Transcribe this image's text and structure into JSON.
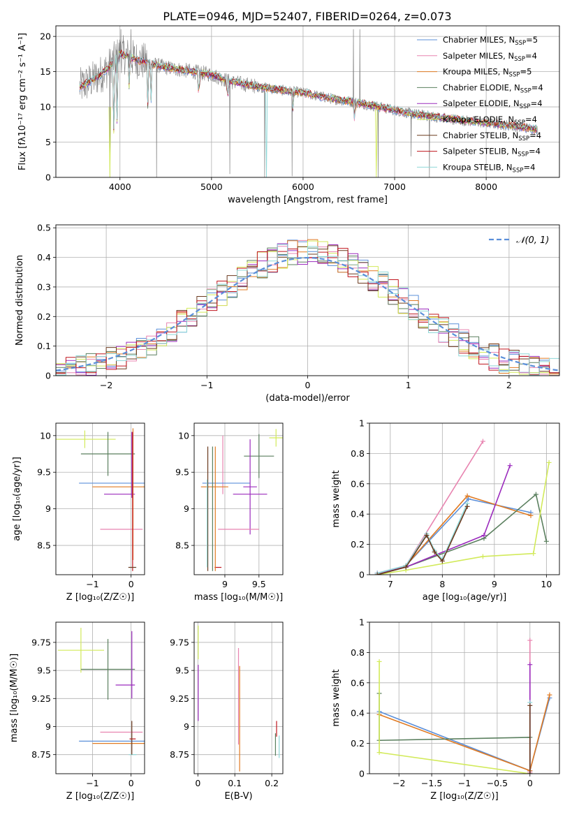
{
  "title": "PLATE=0946, MJD=52407, FIBERID=0264, z=0.073",
  "colors": {
    "chabrier_miles": "#5b8fd9",
    "salpeter_miles": "#e884b0",
    "kroupa_miles": "#e07a22",
    "chabrier_elodie": "#5a7f5e",
    "salpeter_elodie": "#9b2bbd",
    "kroupa_elodie": "#d2ea5a",
    "chabrier_stelib": "#6b3a1f",
    "salpeter_stelib": "#c0161e",
    "kroupa_stelib": "#8fd8d8",
    "data": "#7f7f7f",
    "normal": "#5b8fd9"
  },
  "chart_data": [
    {
      "type": "line",
      "panel": "spectrum",
      "xlabel": "wavelength [Angstrom, rest frame]",
      "ylabel": "Flux [fλ10⁻¹⁷ erg cm⁻² s⁻¹ A⁻¹]",
      "xlim": [
        3300,
        8800
      ],
      "ylim": [
        0,
        21.5
      ],
      "xticks": [
        4000,
        5000,
        6000,
        7000,
        8000
      ],
      "yticks": [
        0,
        5,
        10,
        15,
        20
      ],
      "legend_position": "top-right",
      "legend": [
        {
          "label": "Chabrier MILES, N_SSP=5",
          "key": "chabrier_miles"
        },
        {
          "label": "Salpeter MILES, N_SSP=4",
          "key": "salpeter_miles"
        },
        {
          "label": "Kroupa MILES, N_SSP=5",
          "key": "kroupa_miles"
        },
        {
          "label": "Chabrier ELODIE, N_SSP=4",
          "key": "chabrier_elodie"
        },
        {
          "label": "Salpeter ELODIE, N_SSP=4",
          "key": "salpeter_elodie"
        },
        {
          "label": "Kroupa ELODIE, N_SSP=4",
          "key": "kroupa_elodie"
        },
        {
          "label": "Chabrier STELIB, N_SSP=4",
          "key": "chabrier_stelib"
        },
        {
          "label": "Salpeter STELIB, N_SSP=4",
          "key": "salpeter_stelib"
        },
        {
          "label": "Kroupa STELIB, N_SSP=4",
          "key": "kroupa_stelib"
        }
      ],
      "continuum": [
        [
          3560,
          12.8
        ],
        [
          3700,
          13.8
        ],
        [
          3850,
          15.2
        ],
        [
          4000,
          17.6
        ],
        [
          4200,
          16.6
        ],
        [
          4500,
          15.6
        ],
        [
          4800,
          15.0
        ],
        [
          5000,
          14.6
        ],
        [
          5200,
          13.6
        ],
        [
          5500,
          12.9
        ],
        [
          5800,
          12.3
        ],
        [
          6000,
          12.0
        ],
        [
          6300,
          11.2
        ],
        [
          6600,
          10.6
        ],
        [
          6900,
          9.8
        ],
        [
          7200,
          9.0
        ],
        [
          7500,
          8.5
        ],
        [
          7800,
          8.0
        ],
        [
          8100,
          7.6
        ],
        [
          8400,
          7.1
        ],
        [
          8560,
          6.8
        ]
      ],
      "data_series": "grey observed spectrum"
    },
    {
      "type": "bar",
      "panel": "residuals",
      "xlabel": "(data-model)/error",
      "ylabel": "Normed distribution",
      "xlim": [
        -2.5,
        2.5
      ],
      "ylim": [
        0,
        0.51
      ],
      "xticks": [
        -2,
        -1,
        0,
        1,
        2
      ],
      "yticks": [
        0.0,
        0.1,
        0.2,
        0.3,
        0.4,
        0.5
      ],
      "legend_position": "top-right",
      "normal_label": "𝒩(0, 1)"
    },
    {
      "type": "scatter",
      "panel": "age-vs-Z",
      "xlabel": "Z [log₁₀(Z/Z☉)]",
      "ylabel": "age  [log₁₀(age/yr)]",
      "xlim": [
        -1.95,
        0.35
      ],
      "ylim": [
        8.1,
        10.17
      ],
      "xticks": [
        -1,
        0
      ],
      "yticks": [
        8.5,
        9.0,
        9.5,
        10.0
      ],
      "points": [
        {
          "key": "kroupa_elodie",
          "x": -1.2,
          "xerr": 0.8,
          "y": 9.95,
          "yerr": 0.12
        },
        {
          "key": "chabrier_elodie",
          "x": -0.6,
          "xerr": 0.7,
          "y": 9.75,
          "yerr": 0.3
        },
        {
          "key": "chabrier_miles",
          "x": -0.45,
          "xerr": 0.9,
          "y": 9.35,
          "yerr": 0
        },
        {
          "key": "kroupa_miles",
          "x": -0.3,
          "xerr": 0.7,
          "y": 9.3,
          "yerr": 0
        },
        {
          "key": "salpeter_elodie",
          "x": -0.3,
          "xerr": 0.4,
          "y": 9.2,
          "yerr": 0
        },
        {
          "key": "salpeter_miles",
          "x": -0.25,
          "xerr": 0.55,
          "y": 8.72,
          "yerr": 0
        },
        {
          "key": "salpeter_elodie",
          "x": 0.02,
          "xerr": 0,
          "y": 9.6,
          "yerr": 0.45
        },
        {
          "key": "kroupa_miles",
          "x": 0.05,
          "xerr": 0,
          "y": 9.2,
          "yerr": 0.9
        },
        {
          "key": "salpeter_stelib",
          "x": 0.04,
          "xerr": 0,
          "y": 9.1,
          "yerr": 0.95
        },
        {
          "key": "kroupa_stelib",
          "x": 0.04,
          "xerr": 0.1,
          "y": 8.2,
          "yerr": 0
        },
        {
          "key": "chabrier_stelib",
          "x": 0.03,
          "xerr": 0.1,
          "y": 8.2,
          "yerr": 0
        }
      ]
    },
    {
      "type": "scatter",
      "panel": "age-vs-mass",
      "xlabel": "mass [log₁₀(M/M☉)]",
      "ylabel": "",
      "xlim": [
        8.55,
        9.85
      ],
      "ylim": [
        8.1,
        10.17
      ],
      "xticks": [
        9.0,
        9.5
      ],
      "yticks": [
        8.5,
        9.0,
        9.5,
        10.0
      ],
      "points": [
        {
          "key": "kroupa_elodie",
          "x": 9.75,
          "xerr": 0.1,
          "y": 9.97,
          "yerr": 0.12
        },
        {
          "key": "chabrier_elodie",
          "x": 9.5,
          "xerr": 0.22,
          "y": 9.72,
          "yerr": 0.3
        },
        {
          "key": "salpeter_miles",
          "x": 8.97,
          "xerr": 0,
          "y": 9.6,
          "yerr": 0.4
        },
        {
          "key": "chabrier_miles",
          "x": 9.02,
          "xerr": 0.35,
          "y": 9.35,
          "yerr": 0
        },
        {
          "key": "salpeter_elodie",
          "x": 9.37,
          "xerr": 0.1,
          "y": 9.3,
          "yerr": 0.65
        },
        {
          "key": "salpeter_elodie",
          "x": 9.37,
          "xerr": 0.25,
          "y": 9.2,
          "yerr": 0
        },
        {
          "key": "kroupa_miles",
          "x": 8.85,
          "xerr": 0.2,
          "y": 9.3,
          "yerr": 0
        },
        {
          "key": "salpeter_miles",
          "x": 9.2,
          "xerr": 0.3,
          "y": 8.72,
          "yerr": 0
        },
        {
          "key": "chabrier_stelib",
          "x": 8.75,
          "xerr": 0,
          "y": 9.0,
          "yerr": 0.85
        },
        {
          "key": "kroupa_stelib",
          "x": 8.74,
          "xerr": 0,
          "y": 8.8,
          "yerr": 0.6
        },
        {
          "key": "salpeter_stelib",
          "x": 8.9,
          "xerr": 0.05,
          "y": 8.2,
          "yerr": 0
        },
        {
          "key": "chabrier_elodie",
          "x": 8.82,
          "xerr": 0,
          "y": 9.0,
          "yerr": 0.85
        },
        {
          "key": "kroupa_miles",
          "x": 8.86,
          "xerr": 0,
          "y": 9.0,
          "yerr": 0.85
        }
      ]
    },
    {
      "type": "line",
      "panel": "mass-weight-vs-age",
      "xlabel": "age  [log₁₀(age/yr)]",
      "ylabel": "mass weight",
      "xlim": [
        6.6,
        10.25
      ],
      "ylim": [
        0,
        1.0
      ],
      "xticks": [
        7,
        8,
        9,
        10
      ],
      "yticks": [
        0.0,
        0.2,
        0.4,
        0.6,
        0.8,
        1.0
      ],
      "series": [
        {
          "key": "chabrier_miles",
          "points": [
            [
              6.75,
              0.0
            ],
            [
              7.3,
              0.06
            ],
            [
              8.5,
              0.5
            ],
            [
              9.7,
              0.41
            ]
          ]
        },
        {
          "key": "salpeter_miles",
          "points": [
            [
              6.75,
              0.01
            ],
            [
              7.3,
              0.06
            ],
            [
              8.78,
              0.88
            ]
          ]
        },
        {
          "key": "kroupa_miles",
          "points": [
            [
              6.75,
              0.0
            ],
            [
              7.3,
              0.06
            ],
            [
              8.48,
              0.52
            ],
            [
              9.7,
              0.39
            ]
          ]
        },
        {
          "key": "chabrier_elodie",
          "points": [
            [
              6.75,
              0.0
            ],
            [
              7.3,
              0.05
            ],
            [
              8.8,
              0.24
            ],
            [
              9.8,
              0.53
            ],
            [
              10.0,
              0.22
            ]
          ]
        },
        {
          "key": "salpeter_elodie",
          "points": [
            [
              6.75,
              0.01
            ],
            [
              7.3,
              0.05
            ],
            [
              8.8,
              0.26
            ],
            [
              9.3,
              0.72
            ]
          ]
        },
        {
          "key": "kroupa_elodie",
          "points": [
            [
              6.75,
              0.0
            ],
            [
              7.3,
              0.03
            ],
            [
              8.78,
              0.12
            ],
            [
              9.75,
              0.14
            ],
            [
              10.05,
              0.74
            ]
          ]
        },
        {
          "key": "kroupa_stelib",
          "points": [
            [
              6.75,
              0.01
            ],
            [
              7.3,
              0.06
            ],
            [
              7.7,
              0.27
            ],
            [
              7.85,
              0.16
            ],
            [
              8.0,
              0.1
            ],
            [
              8.48,
              0.47
            ]
          ]
        },
        {
          "key": "chabrier_stelib",
          "points": [
            [
              6.75,
              0.0
            ],
            [
              7.3,
              0.05
            ],
            [
              7.7,
              0.26
            ],
            [
              7.85,
              0.15
            ],
            [
              8.0,
              0.09
            ],
            [
              8.48,
              0.45
            ]
          ]
        }
      ]
    },
    {
      "type": "scatter",
      "panel": "mass-vs-Z",
      "xlabel": "Z [log₁₀(Z/Z☉)]",
      "ylabel": "mass [log₁₀(M/M☉)]",
      "xlim": [
        -1.95,
        0.35
      ],
      "ylim": [
        8.58,
        9.93
      ],
      "xticks": [
        -1,
        0
      ],
      "yticks": [
        8.75,
        9.0,
        9.25,
        9.5,
        9.75
      ],
      "points": [
        {
          "key": "kroupa_elodie",
          "x": -1.3,
          "xerr": 0.6,
          "y": 9.68,
          "yerr": 0.2
        },
        {
          "key": "chabrier_elodie",
          "x": -0.6,
          "xerr": 0.7,
          "y": 9.51,
          "yerr": 0.27
        },
        {
          "key": "salpeter_elodie",
          "x": -0.15,
          "xerr": 0.25,
          "y": 9.37,
          "yerr": 0
        },
        {
          "key": "salpeter_miles",
          "x": -0.25,
          "xerr": 0.55,
          "y": 8.95,
          "yerr": 0
        },
        {
          "key": "chabrier_miles",
          "x": -0.45,
          "xerr": 0.9,
          "y": 8.87,
          "yerr": 0
        },
        {
          "key": "kroupa_miles",
          "x": -0.3,
          "xerr": 0.7,
          "y": 8.85,
          "yerr": 0
        },
        {
          "key": "salpeter_elodie",
          "x": 0.02,
          "xerr": 0,
          "y": 9.55,
          "yerr": 0.3
        },
        {
          "key": "salpeter_stelib",
          "x": 0.04,
          "xerr": 0.08,
          "y": 8.89,
          "yerr": 0
        },
        {
          "key": "kroupa_stelib",
          "x": 0.04,
          "xerr": 0.1,
          "y": 8.75,
          "yerr": 0
        },
        {
          "key": "chabrier_stelib",
          "x": 0.02,
          "xerr": 0,
          "y": 8.9,
          "yerr": 0.15
        }
      ]
    },
    {
      "type": "scatter",
      "panel": "mass-vs-EBV",
      "xlabel": "E(B-V)",
      "ylabel": "",
      "xlim": [
        -0.01,
        0.23
      ],
      "ylim": [
        8.58,
        9.93
      ],
      "xticks": [
        0.0,
        0.1,
        0.2
      ],
      "yticks": [
        8.75,
        9.0,
        9.25,
        9.5,
        9.75
      ],
      "points": [
        {
          "key": "kroupa_elodie",
          "x": 0.001,
          "xerr": 0,
          "y": 9.75,
          "yerr": 0.15
        },
        {
          "key": "salpeter_elodie",
          "x": 0.001,
          "xerr": 0,
          "y": 9.3,
          "yerr": 0.25
        },
        {
          "key": "salpeter_miles",
          "x": 0.11,
          "xerr": 0,
          "y": 9.27,
          "yerr": 0.43
        },
        {
          "key": "kroupa_miles",
          "x": 0.113,
          "xerr": 0,
          "y": 9.07,
          "yerr": 0.47
        },
        {
          "key": "salpeter_stelib",
          "x": 0.213,
          "xerr": 0,
          "y": 8.98,
          "yerr": 0.07
        },
        {
          "key": "chabrier_elodie",
          "x": 0.21,
          "xerr": 0,
          "y": 8.84,
          "yerr": 0.1
        },
        {
          "key": "kroupa_stelib",
          "x": 0.22,
          "xerr": 0,
          "y": 8.82,
          "yerr": 0.1
        }
      ]
    },
    {
      "type": "line",
      "panel": "mass-weight-vs-Z",
      "xlabel": "Z [log₁₀(Z/Z☉)]",
      "ylabel": "mass weight",
      "xlim": [
        -2.45,
        0.45
      ],
      "ylim": [
        0,
        1.0
      ],
      "xticks": [
        -2.0,
        -1.5,
        -1.0,
        -0.5,
        0.0
      ],
      "yticks": [
        0.0,
        0.2,
        0.4,
        0.6,
        0.8,
        1.0
      ],
      "series": [
        {
          "key": "chabrier_miles",
          "points": [
            [
              -2.3,
              0.41
            ],
            [
              0.0,
              0.02
            ],
            [
              0.3,
              0.5
            ]
          ]
        },
        {
          "key": "kroupa_miles",
          "points": [
            [
              -2.3,
              0.39
            ],
            [
              0.0,
              0.02
            ],
            [
              0.3,
              0.52
            ]
          ]
        },
        {
          "key": "chabrier_elodie",
          "points": [
            [
              -2.3,
              0.53
            ],
            [
              -2.3,
              0.22
            ],
            [
              0.0,
              0.24
            ],
            [
              0.0,
              0.0
            ]
          ]
        },
        {
          "key": "kroupa_elodie",
          "points": [
            [
              -2.3,
              0.74
            ],
            [
              -2.3,
              0.14
            ],
            [
              0.0,
              0.0
            ]
          ]
        },
        {
          "key": "salpeter_miles",
          "points": [
            [
              0.0,
              0.88
            ],
            [
              0.0,
              0.01
            ]
          ]
        },
        {
          "key": "salpeter_elodie",
          "points": [
            [
              0.0,
              0.72
            ],
            [
              0.0,
              0.0
            ]
          ]
        },
        {
          "key": "kroupa_stelib",
          "points": [
            [
              0.0,
              0.47
            ],
            [
              0.0,
              0.0
            ]
          ]
        },
        {
          "key": "chabrier_stelib",
          "points": [
            [
              0.0,
              0.45
            ],
            [
              0.0,
              0.0
            ]
          ]
        }
      ]
    }
  ]
}
